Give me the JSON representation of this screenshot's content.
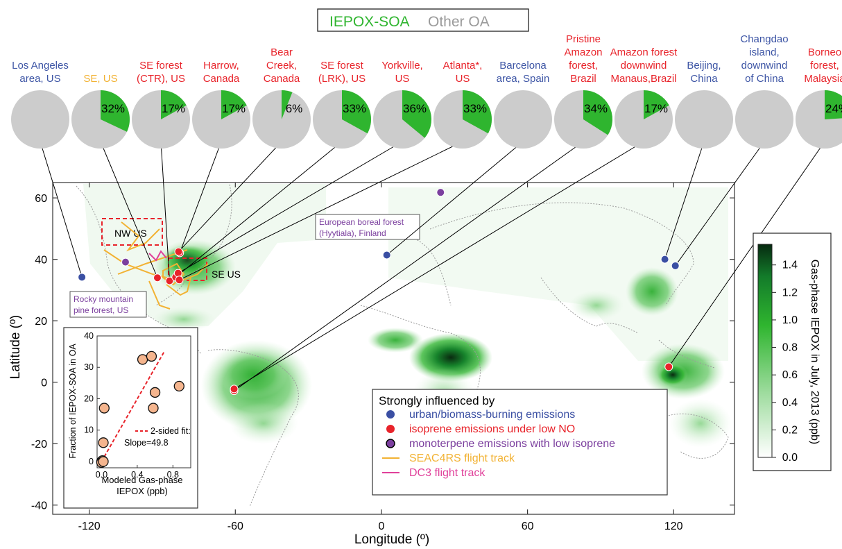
{
  "colors": {
    "ieposoa": "#2fb52f",
    "other_oa": "#cccccc",
    "urban": "#3a4fa3",
    "isoprene": "#e8232a",
    "monoterpene": "#7b3f9e",
    "seac4rs": "#f2b233",
    "dc3": "#e0409a",
    "site_blue": "#3d55a5",
    "site_red": "#e8232a",
    "site_purple": "#7b3f9e"
  },
  "top_legend": {
    "iepox_soa": "IEPOX-SOA",
    "other_oa": "Other OA"
  },
  "sites": [
    {
      "name_lines": [
        "Los Angeles",
        "area, US"
      ],
      "color": "blue",
      "pct": 0,
      "pct_label": "",
      "lon": -123,
      "lat": 34.2
    },
    {
      "name_lines": [
        "SE, US"
      ],
      "color": "orange",
      "pct": 32,
      "pct_label": "32%",
      "lon": -92,
      "lat": 34
    },
    {
      "name_lines": [
        "SE forest",
        "(CTR), US"
      ],
      "color": "red",
      "pct": 17,
      "pct_label": "17%",
      "lon": -87,
      "lat": 33
    },
    {
      "name_lines": [
        "Harrow,",
        "Canada"
      ],
      "color": "red",
      "pct": 17,
      "pct_label": "17%",
      "lon": -82.8,
      "lat": 42.1
    },
    {
      "name_lines": [
        "Bear",
        "Creek,",
        "Canada"
      ],
      "color": "red",
      "pct": 6,
      "pct_label": "6%",
      "lon": -83.3,
      "lat": 42.5
    },
    {
      "name_lines": [
        "SE forest",
        "(LRK), US"
      ],
      "color": "red",
      "pct": 33,
      "pct_label": "33%",
      "lon": -84.5,
      "lat": 34.2
    },
    {
      "name_lines": [
        "Yorkville,",
        "US"
      ],
      "color": "red",
      "pct": 36,
      "pct_label": "36%",
      "lon": -83.5,
      "lat": 35.5
    },
    {
      "name_lines": [
        "Atlanta*,",
        "US"
      ],
      "color": "red",
      "pct": 33,
      "pct_label": "33%",
      "lon": -83,
      "lat": 33.3
    },
    {
      "name_lines": [
        "Barcelona",
        "area, Spain"
      ],
      "color": "blue",
      "pct": 0,
      "pct_label": "",
      "lon": 2.2,
      "lat": 41.4
    },
    {
      "name_lines": [
        "Pristine",
        "Amazon",
        "forest,",
        "Brazil"
      ],
      "color": "red",
      "pct": 34,
      "pct_label": "34%",
      "lon": -60.5,
      "lat": -2.8
    },
    {
      "name_lines": [
        "Amazon forest",
        "downwind",
        "Manaus,Brazil"
      ],
      "color": "red",
      "pct": 17,
      "pct_label": "17%",
      "lon": -60.5,
      "lat": -2.2
    },
    {
      "name_lines": [
        "Beijing,",
        "China"
      ],
      "color": "blue",
      "pct": 0,
      "pct_label": "",
      "lon": 116.4,
      "lat": 40
    },
    {
      "name_lines": [
        "Changdao",
        "island,",
        "downwind",
        "of China"
      ],
      "color": "blue",
      "pct": 0,
      "pct_label": "",
      "lon": 120.7,
      "lat": 37.9
    },
    {
      "name_lines": [
        "Borneo",
        "forest,",
        "Malaysia"
      ],
      "color": "red",
      "pct": 24,
      "pct_label": "24%",
      "lon": 118,
      "lat": 5
    }
  ],
  "extra_markers": [
    {
      "kind": "monoterpene",
      "lon": -105.1,
      "lat": 39.1
    },
    {
      "kind": "monoterpene",
      "lon": 24.3,
      "lat": 61.8
    }
  ],
  "map": {
    "x_ticks": [
      "-120",
      "-60",
      "0",
      "60",
      "120"
    ],
    "y_ticks": [
      "60",
      "40",
      "20",
      "0",
      "-20",
      "-40"
    ],
    "xlabel": "Longitude (º)",
    "ylabel": "Latitude (º)",
    "region_labels": {
      "nw_us": "NW US",
      "se_us": "SE US"
    },
    "callouts": {
      "boreal": [
        "European boreal forest",
        "(Hyytiala), Finland"
      ],
      "rocky": [
        "Rocky mountain",
        "pine forest, US"
      ]
    }
  },
  "colorbar": {
    "title": "Gas-phase IEPOX in July, 2013 (ppb)",
    "ticks": [
      "1.4",
      "1.2",
      "1.0",
      "0.8",
      "0.6",
      "0.4",
      "0.2",
      "0.0"
    ]
  },
  "legend": {
    "title": "Strongly influenced by",
    "items": [
      {
        "kind": "urban",
        "label": "urban/biomass-burning emissions"
      },
      {
        "kind": "isoprene",
        "label": "isoprene emissions under low NO"
      },
      {
        "kind": "monoterpene",
        "label": "monoterpene emissions with low isoprene"
      },
      {
        "kind": "seac4rs",
        "label": "SEAC4RS flight track"
      },
      {
        "kind": "dc3",
        "label": "DC3 flight track"
      }
    ]
  },
  "inset": {
    "ylabel": "Fraction of IEPOX-SOA in OA",
    "xlabel_lines": [
      "Modeled Gas-phase",
      "IEPOX (ppb)"
    ],
    "y_ticks": [
      "40",
      "30",
      "20",
      "10",
      "0"
    ],
    "x_ticks": [
      "0.0",
      "0.4",
      "0.8"
    ],
    "fit_label": "2-sided fit:",
    "slope_label": "Slope=49.8",
    "ylim": [
      -2,
      40
    ],
    "xlim": [
      -0.05,
      1.0
    ]
  },
  "chart_data": {
    "type": "scatter",
    "xlabel": "Modeled Gas-phase IEPOX (ppb)",
    "ylabel": "Fraction of IEPOX-SOA in OA",
    "xlim": [
      -0.05,
      1.0
    ],
    "ylim": [
      -2,
      40
    ],
    "grid": false,
    "points": [
      {
        "x": 0.0,
        "y": 0.0
      },
      {
        "x": 0.01,
        "y": 0.3
      },
      {
        "x": 0.0,
        "y": -0.3
      },
      {
        "x": 0.02,
        "y": 0.0
      },
      {
        "x": 0.02,
        "y": 6.0
      },
      {
        "x": 0.03,
        "y": 17.0
      },
      {
        "x": 0.46,
        "y": 32.5
      },
      {
        "x": 0.56,
        "y": 33.5
      },
      {
        "x": 0.6,
        "y": 22.0
      },
      {
        "x": 0.58,
        "y": 17.0
      },
      {
        "x": 0.87,
        "y": 24.0
      }
    ],
    "fit": {
      "slope": 49.8,
      "label": "2-sided fit:"
    }
  }
}
